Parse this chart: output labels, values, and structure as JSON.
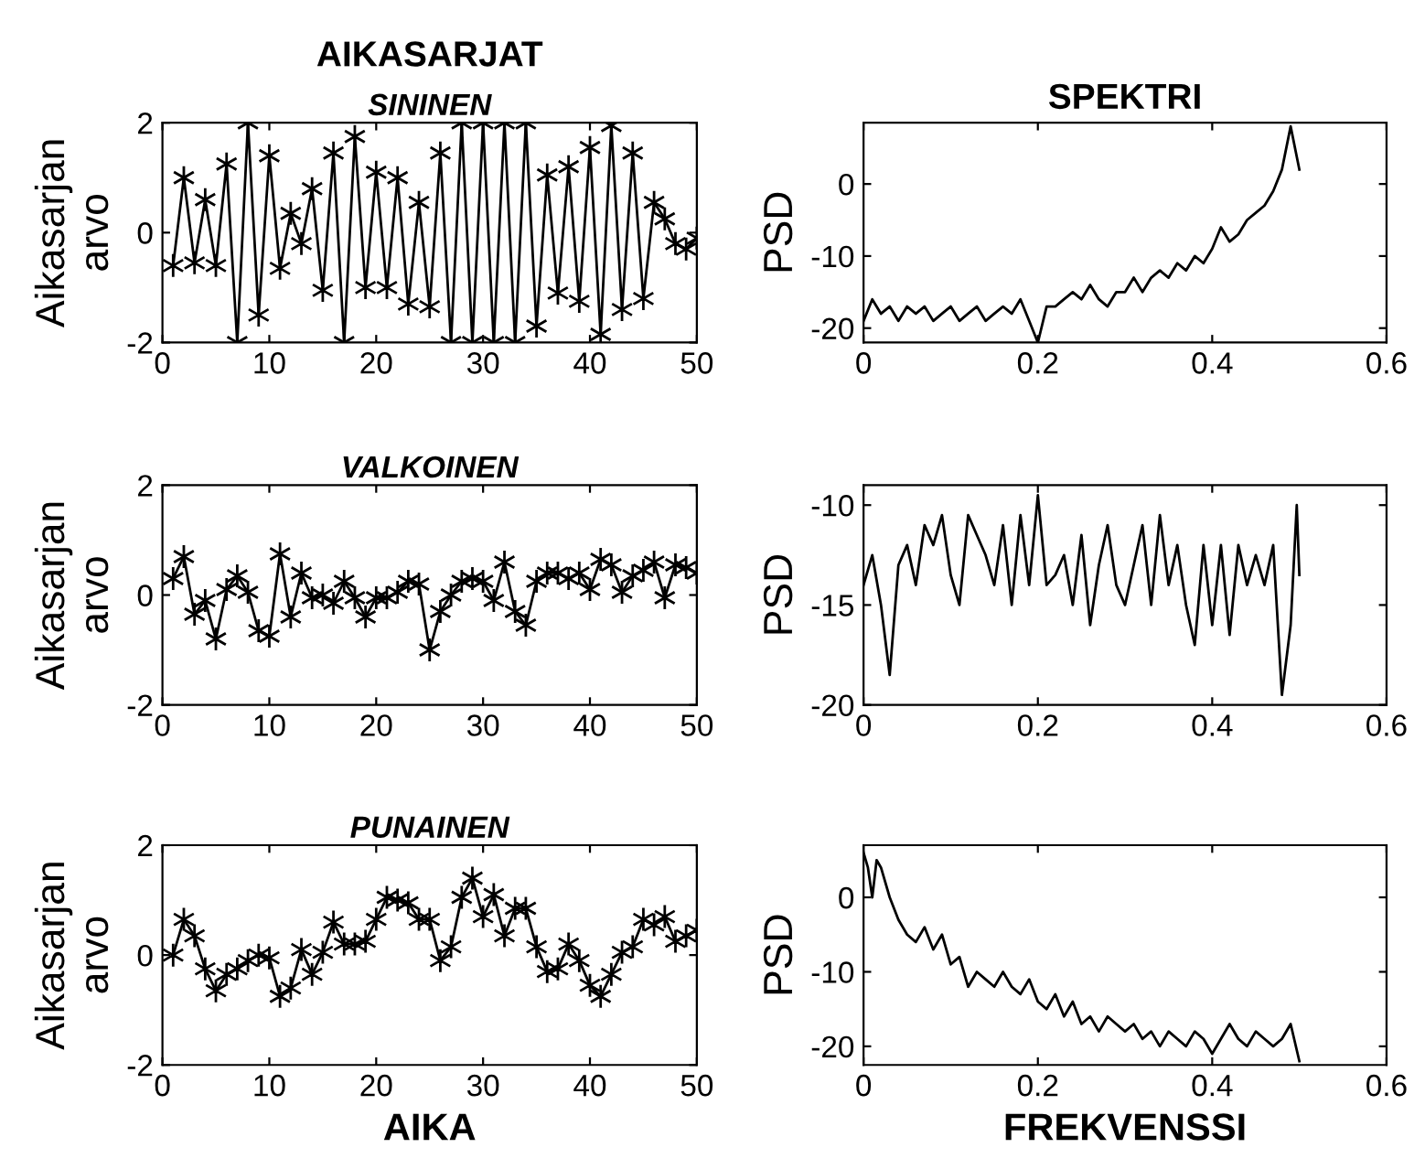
{
  "chart_data": [
    {
      "type": "line",
      "title": "AIKASARJAT",
      "subtitle": "SININEN",
      "ylabel": "Aikasarjan\narvo",
      "marker": "cross",
      "grid": false,
      "legend": false,
      "xlim": [
        0,
        50
      ],
      "xticks": [
        0,
        10,
        20,
        30,
        40,
        50
      ],
      "ylim": [
        -2,
        2
      ],
      "yticks": [
        -2,
        0,
        2
      ],
      "x": [
        1,
        2,
        3,
        4,
        5,
        6,
        7,
        8,
        9,
        10,
        11,
        12,
        13,
        14,
        15,
        16,
        17,
        18,
        19,
        20,
        21,
        22,
        23,
        24,
        25,
        26,
        27,
        28,
        29,
        30,
        31,
        32,
        33,
        34,
        35,
        36,
        37,
        38,
        39,
        40,
        41,
        42,
        43,
        44,
        45,
        46,
        47,
        48,
        49,
        50
      ],
      "series": [
        {
          "color": "#000000",
          "values": [
            -0.6,
            1.0,
            -0.55,
            0.6,
            -0.6,
            1.25,
            -2,
            2,
            -1.5,
            1.4,
            -0.65,
            0.35,
            -0.2,
            0.8,
            -1.05,
            1.45,
            -2,
            1.75,
            -1.0,
            1.1,
            -1.0,
            1.0,
            -1.3,
            0.55,
            -1.35,
            1.45,
            -2,
            2,
            -2,
            2,
            -2,
            2,
            -2,
            2,
            -1.7,
            1.05,
            -1.1,
            1.2,
            -1.25,
            1.55,
            -1.85,
            1.95,
            -1.4,
            1.45,
            -1.2,
            0.55,
            0.25,
            -0.2,
            -0.3,
            -0.1
          ]
        }
      ]
    },
    {
      "type": "line",
      "title": "SPEKTRI",
      "ylabel": "PSD",
      "marker": "none",
      "grid": false,
      "legend": false,
      "xlim": [
        0,
        0.6
      ],
      "xticks": [
        0,
        0.2,
        0.4,
        0.6
      ],
      "ylim": [
        -22,
        8.5
      ],
      "yticks": [
        -20,
        -10,
        0
      ],
      "x": [
        0,
        0.01,
        0.02,
        0.03,
        0.04,
        0.05,
        0.06,
        0.07,
        0.08,
        0.09,
        0.1,
        0.11,
        0.12,
        0.13,
        0.14,
        0.15,
        0.16,
        0.17,
        0.18,
        0.19,
        0.2,
        0.21,
        0.22,
        0.23,
        0.24,
        0.25,
        0.26,
        0.27,
        0.28,
        0.29,
        0.3,
        0.31,
        0.32,
        0.33,
        0.34,
        0.35,
        0.36,
        0.37,
        0.38,
        0.39,
        0.4,
        0.41,
        0.42,
        0.43,
        0.44,
        0.45,
        0.46,
        0.47,
        0.48,
        0.49,
        0.5
      ],
      "series": [
        {
          "color": "#000000",
          "values": [
            -19,
            -16,
            -18,
            -17,
            -19,
            -17,
            -18,
            -17,
            -19,
            -18,
            -17,
            -19,
            -18,
            -17,
            -19,
            -18,
            -17,
            -18,
            -16,
            -19,
            -22,
            -17,
            -17,
            -16,
            -15,
            -16,
            -14,
            -16,
            -17,
            -15,
            -15,
            -13,
            -15,
            -13,
            -12,
            -13,
            -11,
            -12,
            -10,
            -11,
            -9,
            -6,
            -8,
            -7,
            -5,
            -4,
            -3,
            -1,
            2,
            8,
            2
          ]
        }
      ]
    },
    {
      "type": "line",
      "subtitle": "VALKOINEN",
      "ylabel": "Aikasarjan\narvo",
      "marker": "cross",
      "grid": false,
      "legend": false,
      "xlim": [
        0,
        50
      ],
      "xticks": [
        0,
        10,
        20,
        30,
        40,
        50
      ],
      "ylim": [
        -2,
        2
      ],
      "yticks": [
        -2,
        0,
        2
      ],
      "x": [
        1,
        2,
        3,
        4,
        5,
        6,
        7,
        8,
        9,
        10,
        11,
        12,
        13,
        14,
        15,
        16,
        17,
        18,
        19,
        20,
        21,
        22,
        23,
        24,
        25,
        26,
        27,
        28,
        29,
        30,
        31,
        32,
        33,
        34,
        35,
        36,
        37,
        38,
        39,
        40,
        41,
        42,
        43,
        44,
        45,
        46,
        47,
        48,
        49,
        50
      ],
      "series": [
        {
          "color": "#000000",
          "values": [
            0.3,
            0.7,
            -0.35,
            -0.1,
            -0.8,
            0.1,
            0.35,
            0.05,
            -0.65,
            -0.75,
            0.75,
            -0.4,
            0.4,
            -0.05,
            0.0,
            -0.15,
            0.25,
            -0.05,
            -0.4,
            -0.05,
            -0.05,
            0.05,
            0.25,
            0.2,
            -1.0,
            -0.3,
            0.0,
            0.25,
            0.3,
            0.25,
            -0.1,
            0.6,
            -0.3,
            -0.55,
            0.25,
            0.4,
            0.4,
            0.3,
            0.4,
            0.1,
            0.65,
            0.55,
            0.05,
            0.35,
            0.45,
            0.6,
            -0.05,
            0.55,
            0.5,
            0.4
          ]
        }
      ]
    },
    {
      "type": "line",
      "ylabel": "PSD",
      "marker": "none",
      "grid": false,
      "legend": false,
      "xlim": [
        0,
        0.6
      ],
      "xticks": [
        0,
        0.2,
        0.4,
        0.6
      ],
      "ylim": [
        -20,
        -9
      ],
      "yticks": [
        -20,
        -15,
        -10
      ],
      "x": [
        0,
        0.01,
        0.02,
        0.03,
        0.04,
        0.05,
        0.06,
        0.07,
        0.08,
        0.09,
        0.1,
        0.11,
        0.12,
        0.13,
        0.14,
        0.15,
        0.16,
        0.17,
        0.18,
        0.19,
        0.2,
        0.21,
        0.22,
        0.23,
        0.24,
        0.25,
        0.26,
        0.27,
        0.28,
        0.29,
        0.3,
        0.31,
        0.32,
        0.33,
        0.34,
        0.35,
        0.36,
        0.37,
        0.38,
        0.39,
        0.4,
        0.41,
        0.42,
        0.43,
        0.44,
        0.45,
        0.46,
        0.47,
        0.48,
        0.49,
        0.497,
        0.5
      ],
      "series": [
        {
          "color": "#000000",
          "values": [
            -14,
            -12.5,
            -15,
            -18.5,
            -13,
            -12,
            -14,
            -11,
            -12,
            -10.5,
            -13.5,
            -15,
            -10.5,
            -11.5,
            -12.5,
            -14,
            -11,
            -15,
            -10.5,
            -14,
            -9.5,
            -14,
            -13.5,
            -12.5,
            -15,
            -11.5,
            -16,
            -13,
            -11,
            -14,
            -15,
            -13,
            -11,
            -15,
            -10.5,
            -14,
            -12,
            -15,
            -17,
            -12,
            -16,
            -12,
            -16.5,
            -12,
            -14,
            -12.5,
            -14,
            -12,
            -19.5,
            -16,
            -10,
            -13.5
          ]
        }
      ]
    },
    {
      "type": "line",
      "subtitle": "PUNAINEN",
      "ylabel": "Aikasarjan\narvo",
      "xlabel": "AIKA",
      "marker": "cross",
      "grid": false,
      "legend": false,
      "xlim": [
        0,
        50
      ],
      "xticks": [
        0,
        10,
        20,
        30,
        40,
        50
      ],
      "ylim": [
        -2,
        2
      ],
      "yticks": [
        -2,
        0,
        2
      ],
      "x": [
        1,
        2,
        3,
        4,
        5,
        6,
        7,
        8,
        9,
        10,
        11,
        12,
        13,
        14,
        15,
        16,
        17,
        18,
        19,
        20,
        21,
        22,
        23,
        24,
        25,
        26,
        27,
        28,
        29,
        30,
        31,
        32,
        33,
        34,
        35,
        36,
        37,
        38,
        39,
        40,
        41,
        42,
        43,
        44,
        45,
        46,
        47,
        48,
        49,
        50
      ],
      "series": [
        {
          "color": "#000000",
          "values": [
            0.0,
            0.65,
            0.35,
            -0.25,
            -0.65,
            -0.35,
            -0.25,
            -0.1,
            0.0,
            -0.05,
            -0.75,
            -0.6,
            0.1,
            -0.35,
            0.05,
            0.6,
            0.2,
            0.2,
            0.25,
            0.65,
            1.05,
            1.0,
            0.95,
            0.65,
            0.65,
            -0.1,
            0.15,
            1.05,
            1.4,
            0.7,
            1.1,
            0.35,
            0.85,
            0.85,
            0.15,
            -0.3,
            -0.25,
            0.2,
            -0.1,
            -0.55,
            -0.75,
            -0.35,
            0.05,
            0.15,
            0.65,
            0.55,
            0.7,
            0.25,
            0.35,
            0.45
          ]
        }
      ]
    },
    {
      "type": "line",
      "ylabel": "PSD",
      "xlabel": "FREKVENSSI",
      "marker": "none",
      "grid": false,
      "legend": false,
      "xlim": [
        0,
        0.6
      ],
      "xticks": [
        0,
        0.2,
        0.4,
        0.6
      ],
      "ylim": [
        -22.5,
        7
      ],
      "yticks": [
        -20,
        -10,
        0
      ],
      "x": [
        0,
        0.005,
        0.01,
        0.015,
        0.02,
        0.03,
        0.04,
        0.05,
        0.06,
        0.07,
        0.08,
        0.09,
        0.1,
        0.11,
        0.12,
        0.13,
        0.14,
        0.15,
        0.16,
        0.17,
        0.18,
        0.19,
        0.2,
        0.21,
        0.22,
        0.23,
        0.24,
        0.25,
        0.26,
        0.27,
        0.28,
        0.29,
        0.3,
        0.31,
        0.32,
        0.33,
        0.34,
        0.35,
        0.36,
        0.37,
        0.38,
        0.39,
        0.4,
        0.41,
        0.42,
        0.43,
        0.44,
        0.45,
        0.46,
        0.47,
        0.48,
        0.49,
        0.5
      ],
      "series": [
        {
          "color": "#000000",
          "values": [
            6,
            4,
            0,
            5,
            4,
            0,
            -3,
            -5,
            -6,
            -4,
            -7,
            -5,
            -9,
            -8,
            -12,
            -10,
            -11,
            -12,
            -10,
            -12,
            -13,
            -11,
            -14,
            -15,
            -13,
            -16,
            -14,
            -17,
            -16,
            -18,
            -16,
            -17,
            -18,
            -17,
            -19,
            -18,
            -20,
            -18,
            -19,
            -20,
            -18,
            -19,
            -21,
            -19,
            -17,
            -19,
            -20,
            -18,
            -19,
            -20,
            -19,
            -17,
            -22
          ]
        }
      ]
    }
  ]
}
